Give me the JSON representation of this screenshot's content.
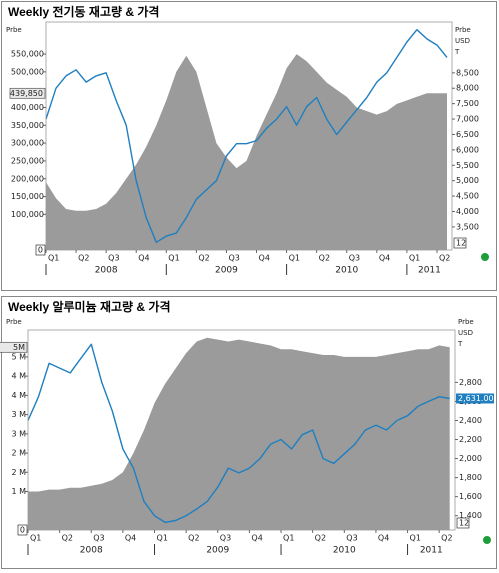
{
  "chart_data": [
    {
      "type": "combo",
      "title": "Weekly 전기동 재고량 & 가격",
      "y_unit_label": "Prbe",
      "y2_unit_labels": [
        "Prbe",
        "USD",
        "T"
      ],
      "corner_label": "12",
      "x": [
        0,
        1,
        2,
        3,
        4,
        5,
        6,
        7,
        8,
        9,
        10,
        11,
        12,
        13,
        14,
        15,
        16,
        17,
        18,
        19,
        20,
        21,
        22,
        23,
        24,
        25,
        26,
        27,
        28,
        29,
        30,
        31,
        32,
        33,
        34,
        35,
        36,
        37,
        38,
        39,
        40
      ],
      "xlim": [
        0,
        40.5
      ],
      "xticks": [
        {
          "value": 0,
          "label": "Q1"
        },
        {
          "value": 3,
          "label": "Q2"
        },
        {
          "value": 6,
          "label": "Q3"
        },
        {
          "value": 9,
          "label": "Q4"
        },
        {
          "value": 12,
          "label": "Q1"
        },
        {
          "value": 15,
          "label": "Q2"
        },
        {
          "value": 18,
          "label": "Q3"
        },
        {
          "value": 21,
          "label": "Q4"
        },
        {
          "value": 24,
          "label": "Q1"
        },
        {
          "value": 27,
          "label": "Q2"
        },
        {
          "value": 30,
          "label": "Q3"
        },
        {
          "value": 33,
          "label": "Q4"
        },
        {
          "value": 36,
          "label": "Q1"
        },
        {
          "value": 39,
          "label": "Q2"
        }
      ],
      "x_groups": [
        {
          "label": "2008",
          "start": 0,
          "end": 12
        },
        {
          "label": "2009",
          "start": 12,
          "end": 24
        },
        {
          "label": "2010",
          "start": 24,
          "end": 36
        },
        {
          "label": "2011",
          "start": 36,
          "end": 40.5
        }
      ],
      "ylim": [
        0,
        640000
      ],
      "yticks": [
        0,
        {
          "value": 100000,
          "label": "100,000"
        },
        {
          "value": 150000,
          "label": "150,000"
        },
        {
          "value": 200000,
          "label": "200,000"
        },
        {
          "value": 250000,
          "label": "250,000"
        },
        {
          "value": 300000,
          "label": "300,000"
        },
        {
          "value": 350000,
          "label": "350,000"
        },
        {
          "value": 400000,
          "label": "400,000"
        },
        {
          "value": 500000,
          "label": "500,000"
        },
        {
          "value": 550000,
          "label": "550,000"
        }
      ],
      "y_marker": {
        "value": 439850,
        "label": "439,850"
      },
      "y2lim": [
        2750,
        10150
      ],
      "y2ticks": [
        {
          "value": 3500,
          "label": "3,500"
        },
        {
          "value": 4000,
          "label": "4,000"
        },
        {
          "value": 4500,
          "label": "4,500"
        },
        {
          "value": 5000,
          "label": "5,000"
        },
        {
          "value": 5500,
          "label": "5,500"
        },
        {
          "value": 6000,
          "label": "6,000"
        },
        {
          "value": 6500,
          "label": "6,500"
        },
        {
          "value": 7000,
          "label": "7,000"
        },
        {
          "value": 7500,
          "label": "7,500"
        },
        {
          "value": 8000,
          "label": "8,000"
        },
        {
          "value": 8500,
          "label": "8,500"
        }
      ],
      "series": [
        {
          "kind": "area",
          "axis": "y",
          "color": "#9b9b9b",
          "values": [
            190000,
            145000,
            115000,
            110000,
            110000,
            115000,
            130000,
            160000,
            200000,
            240000,
            290000,
            350000,
            420000,
            500000,
            545000,
            500000,
            400000,
            300000,
            260000,
            230000,
            250000,
            320000,
            380000,
            440000,
            510000,
            550000,
            530000,
            500000,
            470000,
            450000,
            430000,
            400000,
            390000,
            380000,
            390000,
            410000,
            420000,
            430000,
            440000,
            440000,
            439850
          ]
        },
        {
          "kind": "line",
          "axis": "y2",
          "color": "#1f7fc0",
          "values": [
            7000,
            8000,
            8400,
            8600,
            8200,
            8400,
            8500,
            7600,
            6800,
            5000,
            3800,
            3000,
            3200,
            3300,
            3800,
            4400,
            4700,
            5000,
            5800,
            6200,
            6200,
            6300,
            6700,
            7000,
            7400,
            6800,
            7400,
            7700,
            7000,
            6500,
            6900,
            7300,
            7700,
            8200,
            8500,
            9000,
            9500,
            9900,
            9600,
            9400,
            9000
          ]
        }
      ]
    },
    {
      "type": "combo",
      "title": "Weekly 알루미늄 재고량 & 가격",
      "y_unit_label": "Prbe",
      "y2_unit_labels": [
        "Prbe",
        "USD",
        "T"
      ],
      "corner_label": "12",
      "x": [
        0,
        1,
        2,
        3,
        4,
        5,
        6,
        7,
        8,
        9,
        10,
        11,
        12,
        13,
        14,
        15,
        16,
        17,
        18,
        19,
        20,
        21,
        22,
        23,
        24,
        25,
        26,
        27,
        28,
        29,
        30,
        31,
        32,
        33,
        34,
        35,
        36,
        37,
        38,
        39,
        40
      ],
      "xlim": [
        0,
        40.5
      ],
      "xticks": [
        {
          "value": 0,
          "label": "Q1"
        },
        {
          "value": 3,
          "label": "Q2"
        },
        {
          "value": 6,
          "label": "Q3"
        },
        {
          "value": 9,
          "label": "Q4"
        },
        {
          "value": 12,
          "label": "Q1"
        },
        {
          "value": 15,
          "label": "Q2"
        },
        {
          "value": 18,
          "label": "Q3"
        },
        {
          "value": 21,
          "label": "Q4"
        },
        {
          "value": 24,
          "label": "Q1"
        },
        {
          "value": 27,
          "label": "Q2"
        },
        {
          "value": 30,
          "label": "Q3"
        },
        {
          "value": 33,
          "label": "Q4"
        },
        {
          "value": 36,
          "label": "Q1"
        },
        {
          "value": 39,
          "label": "Q2"
        }
      ],
      "x_groups": [
        {
          "label": "2008",
          "start": 0,
          "end": 12
        },
        {
          "label": "2009",
          "start": 12,
          "end": 24
        },
        {
          "label": "2010",
          "start": 24,
          "end": 36
        },
        {
          "label": "2011",
          "start": 36,
          "end": 40.5
        }
      ],
      "ylim": [
        0,
        5200000
      ],
      "yticks": [
        0,
        {
          "value": 1000000,
          "label": "1 M"
        },
        {
          "value": 1500000,
          "label": "2 M"
        },
        {
          "value": 2000000,
          "label": "2 M"
        },
        {
          "value": 2500000,
          "label": "3 M"
        },
        {
          "value": 3000000,
          "label": "3 M"
        },
        {
          "value": 3500000,
          "label": "4 M"
        },
        {
          "value": 4000000,
          "label": "4 M"
        },
        {
          "value": 4500000,
          "label": "5 M"
        }
      ],
      "y_marker": {
        "value": 4750000,
        "label": "5M"
      },
      "y2lim": [
        1250,
        3350
      ],
      "y2ticks": [
        {
          "value": 1400,
          "label": "1,400"
        },
        {
          "value": 1600,
          "label": "1,600"
        },
        {
          "value": 1800,
          "label": "1,800"
        },
        {
          "value": 2000,
          "label": "2,000"
        },
        {
          "value": 2200,
          "label": "2,200"
        },
        {
          "value": 2400,
          "label": "2,400"
        },
        {
          "value": 2600,
          "label": "2,600"
        },
        {
          "value": 2800,
          "label": "2,800"
        }
      ],
      "y2_marker": {
        "value": 2631,
        "label": "2,631.00"
      },
      "series": [
        {
          "kind": "area",
          "axis": "y",
          "color": "#9b9b9b",
          "values": [
            1000000,
            1000000,
            1050000,
            1050000,
            1100000,
            1100000,
            1150000,
            1200000,
            1300000,
            1500000,
            2000000,
            2600000,
            3300000,
            3800000,
            4200000,
            4600000,
            4900000,
            5000000,
            4950000,
            4900000,
            4950000,
            4900000,
            4850000,
            4800000,
            4700000,
            4700000,
            4650000,
            4600000,
            4550000,
            4550000,
            4500000,
            4500000,
            4500000,
            4500000,
            4550000,
            4600000,
            4650000,
            4700000,
            4700000,
            4800000,
            4750000
          ]
        },
        {
          "kind": "line",
          "axis": "y2",
          "color": "#1f7fc0",
          "values": [
            2400,
            2650,
            3000,
            2950,
            2900,
            3050,
            3200,
            2800,
            2500,
            2100,
            1900,
            1550,
            1400,
            1330,
            1350,
            1400,
            1470,
            1550,
            1700,
            1900,
            1850,
            1900,
            2000,
            2150,
            2200,
            2100,
            2250,
            2300,
            2000,
            1950,
            2050,
            2150,
            2300,
            2350,
            2300,
            2400,
            2450,
            2550,
            2600,
            2650,
            2631
          ]
        }
      ]
    }
  ]
}
